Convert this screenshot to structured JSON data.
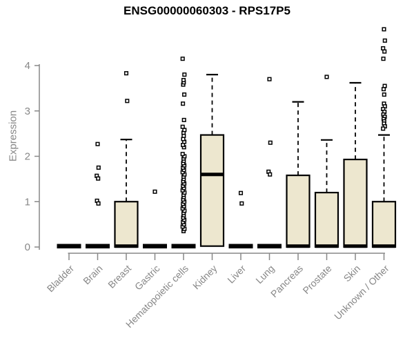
{
  "chart_data": {
    "type": "boxplot",
    "title": "ENSG00000060303 - RPS17P5",
    "ylabel": "Expression",
    "xlabel": "",
    "ylim": [
      0,
      4.9
    ],
    "yticks": [
      0,
      1,
      2,
      3,
      4
    ],
    "legend": "none",
    "grid": false,
    "categories": [
      "Bladder",
      "Brain",
      "Breast",
      "Gastric",
      "Hematopoietic cells",
      "Kidney",
      "Liver",
      "Lung",
      "Pancreas",
      "Prostate",
      "Skin",
      "Unknown / Other"
    ],
    "series": [
      {
        "category": "Bladder",
        "q1": 0,
        "median": 0,
        "q3": 0,
        "whisker_low": 0,
        "whisker_high": 0,
        "outliers": []
      },
      {
        "category": "Brain",
        "q1": 0,
        "median": 0,
        "q3": 0,
        "whisker_low": 0,
        "whisker_high": 0,
        "outliers": [
          2.27,
          1.75,
          1.57,
          1.51,
          1.02,
          0.96
        ]
      },
      {
        "category": "Breast",
        "q1": 0,
        "median": 0.02,
        "q3": 1.0,
        "whisker_low": 0,
        "whisker_high": 2.37,
        "outliers": [
          3.83,
          3.22
        ]
      },
      {
        "category": "Gastric",
        "q1": 0,
        "median": 0,
        "q3": 0,
        "whisker_low": 0,
        "whisker_high": 0,
        "outliers": [
          1.22
        ]
      },
      {
        "category": "Hematopoietic cells",
        "q1": 0,
        "median": 0,
        "q3": 0,
        "whisker_low": 0,
        "whisker_high": 0,
        "outliers": [
          0.35,
          0.4,
          0.45,
          0.5,
          0.55,
          0.6,
          0.65,
          0.7,
          0.75,
          0.8,
          0.85,
          0.9,
          0.95,
          1.0,
          1.05,
          1.1,
          1.15,
          1.2,
          1.25,
          1.3,
          1.35,
          1.4,
          1.45,
          1.5,
          1.55,
          1.6,
          1.65,
          1.7,
          1.75,
          1.8,
          1.85,
          1.9,
          1.95,
          2.0,
          2.05,
          2.2,
          2.25,
          2.32,
          2.38,
          2.45,
          2.52,
          2.58,
          2.65,
          2.8,
          3.16,
          3.36,
          3.58,
          3.63,
          3.68,
          3.8,
          4.15
        ]
      },
      {
        "category": "Kidney",
        "q1": 0.02,
        "median": 1.6,
        "q3": 2.47,
        "whisker_low": 0.02,
        "whisker_high": 3.8,
        "outliers": []
      },
      {
        "category": "Liver",
        "q1": 0,
        "median": 0,
        "q3": 0,
        "whisker_low": 0,
        "whisker_high": 0,
        "outliers": [
          1.19,
          0.96
        ]
      },
      {
        "category": "Lung",
        "q1": 0,
        "median": 0,
        "q3": 0,
        "whisker_low": 0,
        "whisker_high": 0,
        "outliers": [
          3.7,
          2.3,
          1.66,
          1.6
        ]
      },
      {
        "category": "Pancreas",
        "q1": 0,
        "median": 0.02,
        "q3": 1.58,
        "whisker_low": 0,
        "whisker_high": 3.2,
        "outliers": []
      },
      {
        "category": "Prostate",
        "q1": 0,
        "median": 0.02,
        "q3": 1.2,
        "whisker_low": 0,
        "whisker_high": 2.36,
        "outliers": [
          3.75
        ]
      },
      {
        "category": "Skin",
        "q1": 0,
        "median": 0.02,
        "q3": 1.93,
        "whisker_low": 0,
        "whisker_high": 3.62,
        "outliers": []
      },
      {
        "category": "Unknown / Other",
        "q1": 0,
        "median": 0.02,
        "q3": 1.0,
        "whisker_low": 0,
        "whisker_high": 2.47,
        "outliers": [
          4.8,
          4.55,
          4.38,
          4.31,
          4.15,
          3.55,
          3.48,
          3.36,
          3.16,
          3.1,
          3.04,
          2.98,
          2.92,
          2.87,
          2.82,
          2.77,
          2.72,
          2.66,
          2.61
        ]
      }
    ],
    "colors": {
      "box_fill": "#EDE7CF",
      "box_border": "#000000",
      "median": "#000000",
      "outlier_stroke": "#000000",
      "axis": "#878787",
      "title": "#000000",
      "background": "#FFFFFF"
    }
  }
}
